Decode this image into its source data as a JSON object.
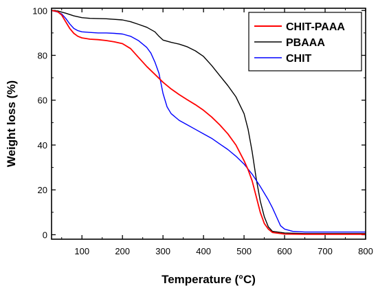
{
  "chart_data": {
    "type": "line",
    "title": "",
    "xlabel": "Temperature (°C)",
    "ylabel": "Weight loss (%)",
    "xlim": [
      25,
      800
    ],
    "ylim": [
      -2,
      101
    ],
    "xticks": [
      100,
      200,
      300,
      400,
      500,
      600,
      700,
      800
    ],
    "yticks": [
      0,
      20,
      40,
      60,
      80,
      100
    ],
    "grid": false,
    "legend_position": "top-right",
    "series": [
      {
        "name": "CHIT-PAAA",
        "color": "#ff0000",
        "points": [
          [
            25,
            100
          ],
          [
            40,
            99.5
          ],
          [
            50,
            98
          ],
          [
            60,
            95
          ],
          [
            70,
            92
          ],
          [
            80,
            89.8
          ],
          [
            90,
            88.5
          ],
          [
            100,
            87.8
          ],
          [
            120,
            87.2
          ],
          [
            140,
            87
          ],
          [
            160,
            86.6
          ],
          [
            180,
            86
          ],
          [
            200,
            85.2
          ],
          [
            220,
            83
          ],
          [
            240,
            79
          ],
          [
            260,
            75
          ],
          [
            280,
            71.5
          ],
          [
            300,
            68
          ],
          [
            320,
            65
          ],
          [
            340,
            62.5
          ],
          [
            360,
            60.2
          ],
          [
            380,
            58
          ],
          [
            400,
            55.5
          ],
          [
            420,
            52.5
          ],
          [
            440,
            49
          ],
          [
            460,
            45
          ],
          [
            480,
            40
          ],
          [
            500,
            33
          ],
          [
            510,
            29
          ],
          [
            520,
            24
          ],
          [
            530,
            17
          ],
          [
            540,
            10
          ],
          [
            550,
            5
          ],
          [
            560,
            2.5
          ],
          [
            570,
            1
          ],
          [
            600,
            0.3
          ],
          [
            650,
            0.2
          ],
          [
            800,
            0.2
          ]
        ]
      },
      {
        "name": "PBAAA",
        "color": "#000000",
        "points": [
          [
            25,
            100
          ],
          [
            40,
            99.8
          ],
          [
            60,
            98.8
          ],
          [
            80,
            97.6
          ],
          [
            100,
            96.8
          ],
          [
            120,
            96.5
          ],
          [
            160,
            96.3
          ],
          [
            200,
            95.8
          ],
          [
            220,
            95
          ],
          [
            240,
            93.8
          ],
          [
            260,
            92.5
          ],
          [
            280,
            90.5
          ],
          [
            290,
            88.5
          ],
          [
            300,
            86.8
          ],
          [
            320,
            85.8
          ],
          [
            340,
            85
          ],
          [
            360,
            83.8
          ],
          [
            380,
            82
          ],
          [
            400,
            79.5
          ],
          [
            420,
            75.5
          ],
          [
            440,
            71
          ],
          [
            460,
            66.5
          ],
          [
            480,
            61.5
          ],
          [
            500,
            54
          ],
          [
            510,
            47
          ],
          [
            520,
            37
          ],
          [
            530,
            25
          ],
          [
            540,
            15
          ],
          [
            550,
            8
          ],
          [
            560,
            3.5
          ],
          [
            570,
            1.5
          ],
          [
            600,
            0.8
          ],
          [
            650,
            0.5
          ],
          [
            800,
            0.5
          ]
        ]
      },
      {
        "name": "CHIT",
        "color": "#0000ff",
        "points": [
          [
            25,
            100
          ],
          [
            40,
            99.3
          ],
          [
            50,
            98.5
          ],
          [
            60,
            96.5
          ],
          [
            70,
            94
          ],
          [
            80,
            92
          ],
          [
            90,
            91
          ],
          [
            100,
            90.5
          ],
          [
            120,
            90.2
          ],
          [
            140,
            90
          ],
          [
            160,
            90
          ],
          [
            180,
            89.8
          ],
          [
            200,
            89.5
          ],
          [
            220,
            88.5
          ],
          [
            240,
            86.5
          ],
          [
            260,
            83.5
          ],
          [
            270,
            81
          ],
          [
            280,
            77
          ],
          [
            290,
            72
          ],
          [
            300,
            63
          ],
          [
            310,
            57
          ],
          [
            320,
            54
          ],
          [
            340,
            51
          ],
          [
            360,
            49
          ],
          [
            380,
            47
          ],
          [
            400,
            45
          ],
          [
            420,
            43
          ],
          [
            440,
            40.5
          ],
          [
            460,
            38
          ],
          [
            480,
            35
          ],
          [
            500,
            31.5
          ],
          [
            520,
            27
          ],
          [
            540,
            21.5
          ],
          [
            560,
            15.5
          ],
          [
            570,
            12
          ],
          [
            580,
            8
          ],
          [
            590,
            4
          ],
          [
            600,
            2.5
          ],
          [
            620,
            1.5
          ],
          [
            650,
            1.2
          ],
          [
            800,
            1.2
          ]
        ]
      }
    ]
  }
}
